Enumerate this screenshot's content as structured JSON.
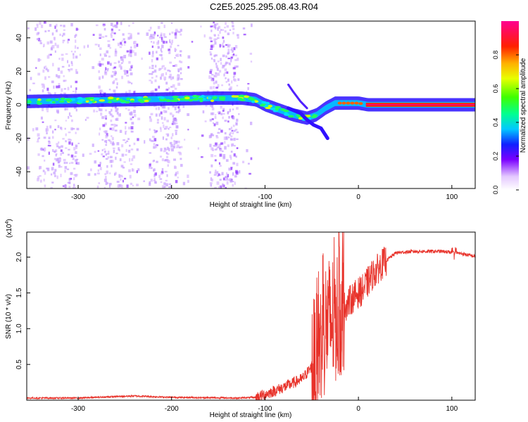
{
  "title": "C2E5.2025.295.08.43.R04",
  "chart_data": [
    {
      "type": "heatmap",
      "name": "spectrogram",
      "xlabel": "Height of straight line (km)",
      "ylabel": "Frequency (Hz)",
      "xlim": [
        -355,
        125
      ],
      "ylim": [
        -50,
        50
      ],
      "x_ticks": [
        -300,
        -200,
        -100,
        0,
        100
      ],
      "y_ticks": [
        -40,
        -20,
        0,
        20,
        40
      ],
      "colorbar": {
        "label": "Normalized spectral amplitude",
        "range": [
          0,
          1
        ],
        "ticks": [
          0.0,
          0.2,
          0.4,
          0.6,
          0.8
        ]
      },
      "ridge": [
        {
          "x": -355,
          "f": 2
        },
        {
          "x": -250,
          "f": 3
        },
        {
          "x": -150,
          "f": 4
        },
        {
          "x": -125,
          "f": 4
        },
        {
          "x": -110,
          "f": 3
        },
        {
          "x": -100,
          "f": 0
        },
        {
          "x": -85,
          "f": -3
        },
        {
          "x": -70,
          "f": -6
        },
        {
          "x": -55,
          "f": -8
        },
        {
          "x": -45,
          "f": -6
        },
        {
          "x": -35,
          "f": -2
        },
        {
          "x": -25,
          "f": 1
        },
        {
          "x": -10,
          "f": 1
        },
        {
          "x": 0,
          "f": 1
        },
        {
          "x": 10,
          "f": 0
        },
        {
          "x": 125,
          "f": 0
        }
      ]
    },
    {
      "type": "line",
      "name": "snr",
      "xlabel": "Height of straight line (km)",
      "ylabel": "SNR (10 * v/v)",
      "multiplier_label": "(x10",
      "multiplier_exp": "4",
      "multiplier_close": ")",
      "xlim": [
        -355,
        125
      ],
      "ylim": [
        0,
        2.35
      ],
      "x_ticks": [
        -300,
        -200,
        -100,
        0,
        100
      ],
      "y_ticks": [
        0.5,
        1.0,
        1.5,
        2.0
      ],
      "color": "#e8322a",
      "envelope": [
        {
          "x": -355,
          "y": 0.03
        },
        {
          "x": -300,
          "y": 0.03
        },
        {
          "x": -240,
          "y": 0.06
        },
        {
          "x": -200,
          "y": 0.04
        },
        {
          "x": -130,
          "y": 0.03
        },
        {
          "x": -110,
          "y": 0.04
        },
        {
          "x": -100,
          "y": 0.08
        },
        {
          "x": -80,
          "y": 0.18
        },
        {
          "x": -60,
          "y": 0.3
        },
        {
          "x": -45,
          "y": 0.55
        },
        {
          "x": -35,
          "y": 1.05
        },
        {
          "x": -25,
          "y": 1.15
        },
        {
          "x": -15,
          "y": 1.3
        },
        {
          "x": -5,
          "y": 1.45
        },
        {
          "x": 5,
          "y": 1.55
        },
        {
          "x": 15,
          "y": 1.75
        },
        {
          "x": 25,
          "y": 1.9
        },
        {
          "x": 40,
          "y": 2.06
        },
        {
          "x": 60,
          "y": 2.08
        },
        {
          "x": 90,
          "y": 2.08
        },
        {
          "x": 110,
          "y": 2.05
        },
        {
          "x": 125,
          "y": 2.01
        }
      ]
    }
  ]
}
